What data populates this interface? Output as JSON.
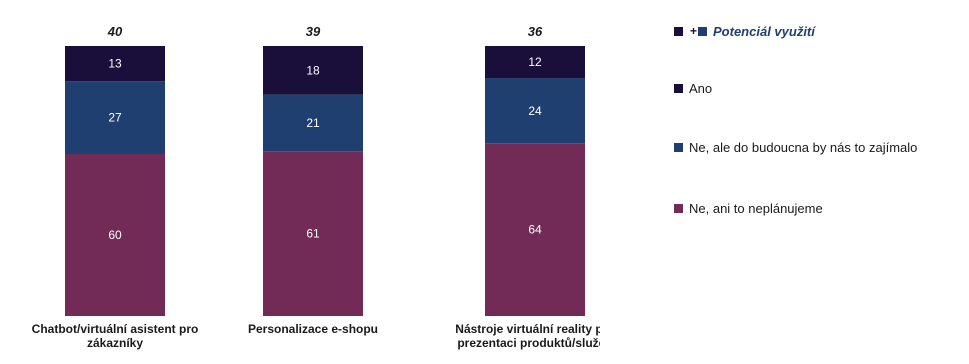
{
  "chart_data": {
    "type": "bar",
    "stacked": true,
    "categories": [
      [
        "Chatbot/virtuální asistent pro",
        "zákazníky"
      ],
      [
        "Personalizace e-shopu"
      ],
      [
        "Nástroje virtuální reality pro",
        "prezentaci produktů/služeb"
      ]
    ],
    "series": [
      {
        "name": "Ano",
        "color": "#1a0f3a",
        "values": [
          13,
          18,
          12
        ]
      },
      {
        "name": "Ne, ale do budoucna by nás to zajímalo",
        "color": "#1f3f70",
        "values": [
          27,
          21,
          24
        ]
      },
      {
        "name": "Ne, ani to neplánujeme",
        "color": "#722a56",
        "values": [
          60,
          61,
          64
        ]
      }
    ],
    "totals": {
      "name": "Potenciál využití",
      "values": [
        40,
        39,
        36
      ]
    },
    "ylim": [
      0,
      100
    ],
    "legend_position": "right"
  },
  "legend": {
    "potential_label": "Potenciál využití",
    "plus": "+",
    "ano": "Ano",
    "ne_zajimalo": "Ne, ale do budoucna by nás to zajímalo",
    "ne_neplanujeme": "Ne, ani to neplánujeme"
  },
  "colors": {
    "ano": "#1a0f3a",
    "zajimalo": "#1f3f70",
    "neplanujeme": "#722a56"
  }
}
